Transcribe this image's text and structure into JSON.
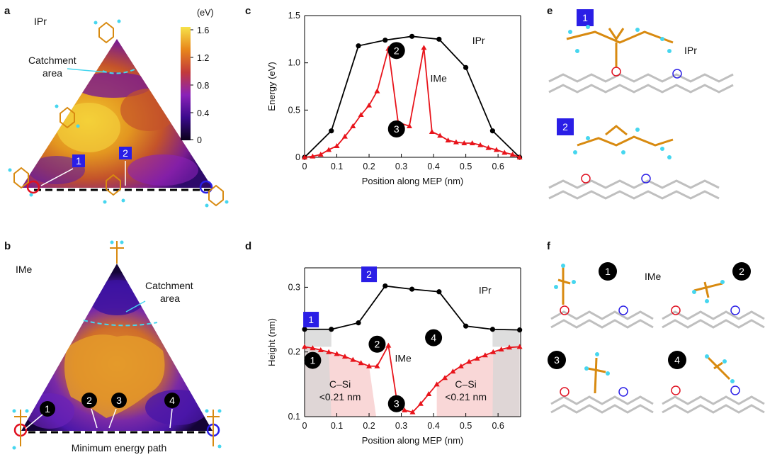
{
  "panel_labels": {
    "a": "a",
    "b": "b",
    "c": "c",
    "d": "d",
    "e": "e",
    "f": "f"
  },
  "panel_a": {
    "title": "IPr",
    "colorbar_unit": "(eV)",
    "colorbar_ticks": [
      "1.6",
      "1.2",
      "0.8",
      "0.4",
      "0"
    ],
    "catchment_text": [
      "Catchment",
      "area"
    ],
    "badges": [
      "1",
      "2"
    ]
  },
  "panel_b": {
    "title": "IMe",
    "catchment_text": [
      "Catchment",
      "area"
    ],
    "badges": [
      "1",
      "2",
      "3",
      "4"
    ],
    "path_label": "Minimum energy path"
  },
  "panel_e": {
    "label": "IPr",
    "badges": [
      "1",
      "2"
    ]
  },
  "panel_f": {
    "label": "IMe",
    "badges": [
      "1",
      "2",
      "3",
      "4"
    ]
  },
  "colors": {
    "ipr": "#000000",
    "ime": "#e8141b",
    "badge_blue": "#2a1ee6",
    "shade_pink": "#f8d0d0",
    "shade_grey": "#d6d6d6"
  },
  "chart_data": [
    {
      "type": "line",
      "panel": "c",
      "xlabel": "Position along MEP (nm)",
      "ylabel": "Energy (eV)",
      "xlim": [
        0,
        0.67
      ],
      "ylim": [
        0,
        1.5
      ],
      "xticks": [
        "0",
        "0.1",
        "0.2",
        "0.3",
        "0.4",
        "0.5",
        "0.6"
      ],
      "yticks": [
        "0",
        "0.5",
        "1.0",
        "1.5"
      ],
      "series": [
        {
          "name": "IPr",
          "x": [
            0,
            0.083,
            0.167,
            0.25,
            0.333,
            0.417,
            0.5,
            0.583,
            0.667
          ],
          "y": [
            0,
            0.28,
            1.18,
            1.24,
            1.28,
            1.25,
            0.95,
            0.28,
            0
          ]
        },
        {
          "name": "IMe",
          "x": [
            0,
            0.025,
            0.05,
            0.075,
            0.1,
            0.125,
            0.15,
            0.175,
            0.2,
            0.225,
            0.26,
            0.29,
            0.325,
            0.37,
            0.395,
            0.42,
            0.445,
            0.47,
            0.495,
            0.52,
            0.545,
            0.57,
            0.595,
            0.62,
            0.645,
            0.667
          ],
          "y": [
            0,
            0.01,
            0.03,
            0.08,
            0.12,
            0.22,
            0.33,
            0.45,
            0.55,
            0.7,
            1.15,
            0.37,
            0.33,
            1.16,
            0.27,
            0.23,
            0.18,
            0.16,
            0.15,
            0.15,
            0.13,
            0.1,
            0.08,
            0.05,
            0.03,
            0
          ]
        }
      ],
      "markers": [
        {
          "label": "2",
          "x": 0.285,
          "y": 1.13
        },
        {
          "label": "3",
          "x": 0.285,
          "y": 0.3
        }
      ]
    },
    {
      "type": "line",
      "panel": "d",
      "xlabel": "Position along MEP (nm)",
      "ylabel": "Height (nm)",
      "xlim": [
        0,
        0.67
      ],
      "ylim": [
        0.1,
        0.33
      ],
      "xticks": [
        "0",
        "0.1",
        "0.2",
        "0.3",
        "0.4",
        "0.5",
        "0.6"
      ],
      "yticks": [
        "0.1",
        "0.2",
        "0.3"
      ],
      "series": [
        {
          "name": "IPr",
          "x": [
            0,
            0.083,
            0.167,
            0.25,
            0.333,
            0.417,
            0.5,
            0.583,
            0.667
          ],
          "y": [
            0.235,
            0.235,
            0.245,
            0.302,
            0.297,
            0.293,
            0.24,
            0.235,
            0.234
          ]
        },
        {
          "name": "IMe",
          "x": [
            0,
            0.025,
            0.05,
            0.075,
            0.1,
            0.125,
            0.15,
            0.175,
            0.2,
            0.225,
            0.26,
            0.29,
            0.31,
            0.335,
            0.36,
            0.385,
            0.41,
            0.435,
            0.46,
            0.485,
            0.51,
            0.535,
            0.56,
            0.585,
            0.61,
            0.635,
            0.667
          ],
          "y": [
            0.208,
            0.206,
            0.203,
            0.2,
            0.197,
            0.193,
            0.188,
            0.183,
            0.178,
            0.178,
            0.21,
            0.112,
            0.11,
            0.107,
            0.12,
            0.135,
            0.15,
            0.16,
            0.17,
            0.178,
            0.185,
            0.19,
            0.195,
            0.2,
            0.204,
            0.207,
            0.208
          ]
        }
      ],
      "annotations": [
        {
          "text": [
            "C–Si",
            "<0.21 nm"
          ],
          "x": 0.11,
          "y": 0.145
        },
        {
          "text": [
            "C–Si",
            "<0.21 nm"
          ],
          "x": 0.5,
          "y": 0.145
        }
      ],
      "markers": [
        {
          "label": "1",
          "x": 0.025,
          "y": 0.187,
          "style": "black"
        },
        {
          "label": "2",
          "x": 0.225,
          "y": 0.212,
          "style": "black"
        },
        {
          "label": "3",
          "x": 0.285,
          "y": 0.12,
          "style": "black"
        },
        {
          "label": "4",
          "x": 0.4,
          "y": 0.222,
          "style": "black"
        },
        {
          "label": "1",
          "x": 0.02,
          "y": 0.25,
          "style": "blue"
        },
        {
          "label": "2",
          "x": 0.2,
          "y": 0.32,
          "style": "blue"
        }
      ]
    }
  ]
}
